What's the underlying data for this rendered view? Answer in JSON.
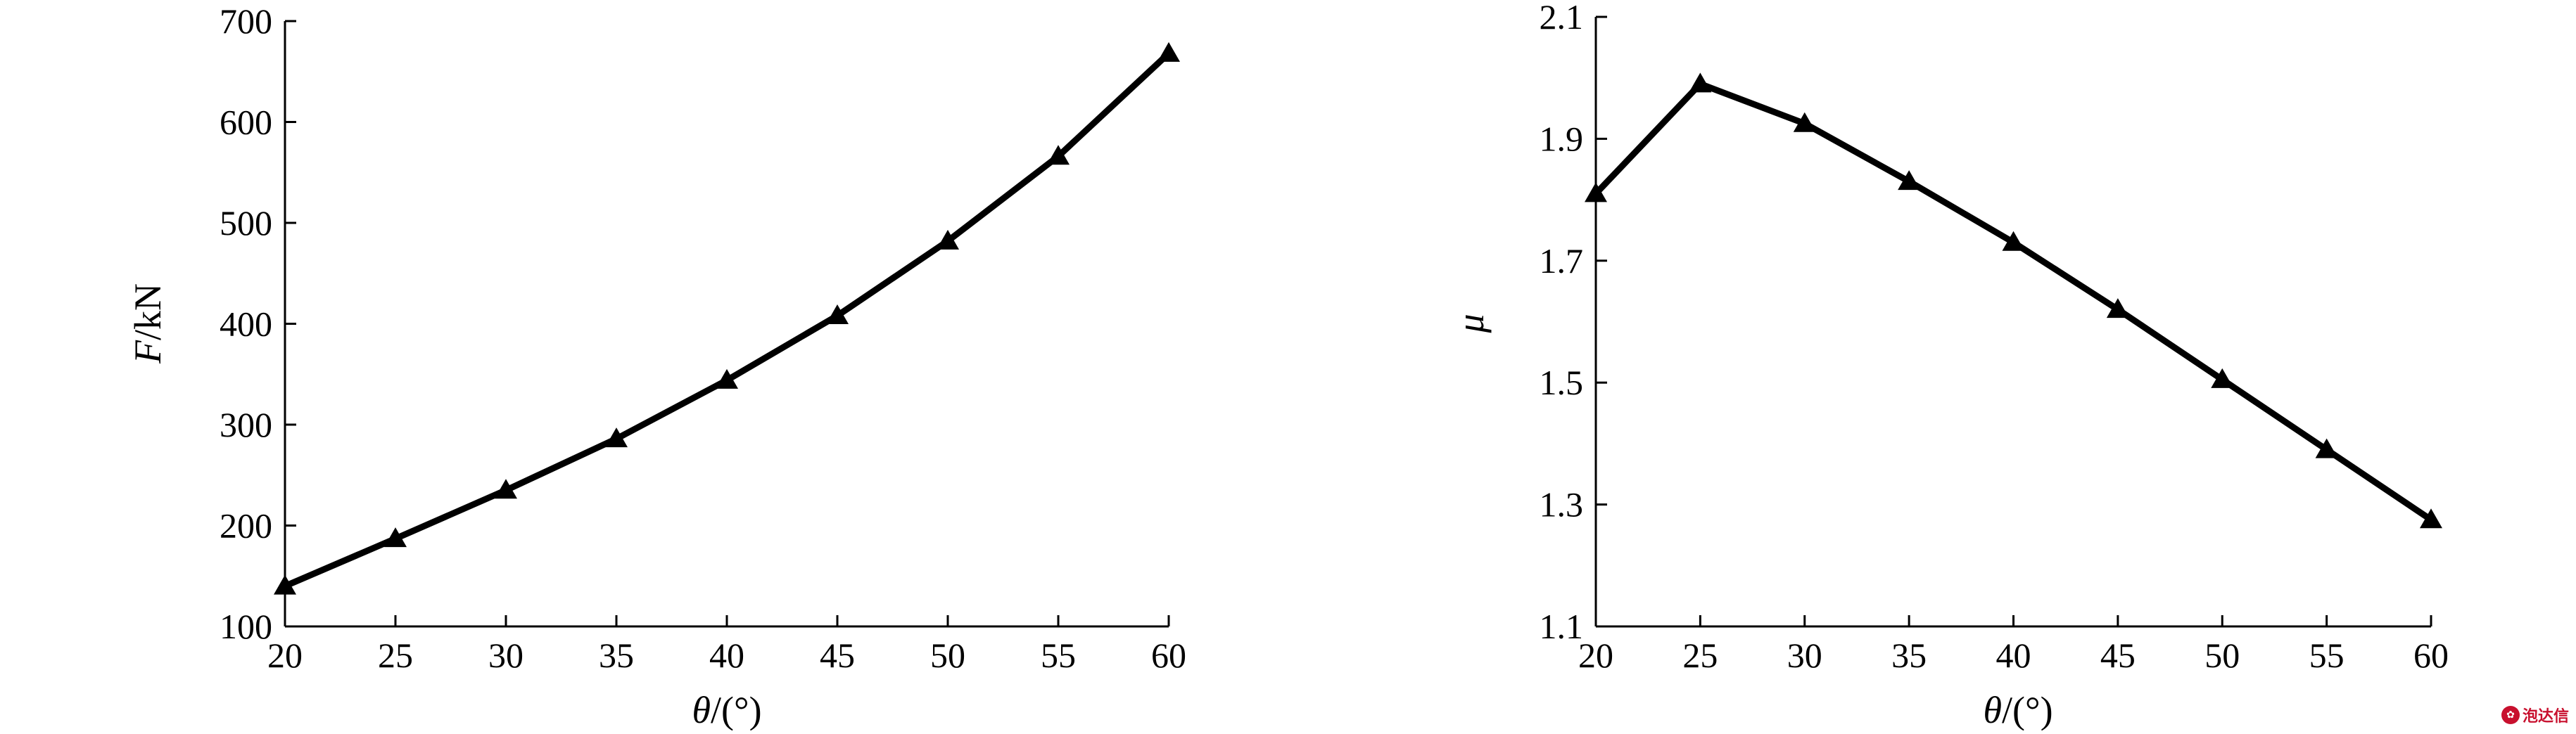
{
  "chart_data": [
    {
      "type": "line",
      "x": [
        20,
        25,
        30,
        35,
        40,
        45,
        50,
        55,
        60
      ],
      "series": [
        {
          "values": [
            140,
            187,
            235,
            286,
            344,
            408,
            482,
            566,
            668
          ],
          "marker": "triangle",
          "color": "#000000"
        }
      ],
      "xlabel": {
        "symbol": "θ",
        "unit": "/(°)"
      },
      "ylabel": {
        "symbol": "F",
        "unit": "/kN"
      },
      "xlim": [
        20,
        60
      ],
      "ylim": [
        100,
        700
      ],
      "xticks": [
        20,
        25,
        30,
        35,
        40,
        45,
        50,
        55,
        60
      ],
      "yticks": [
        100,
        200,
        300,
        400,
        500,
        600,
        700
      ],
      "ytick_decimals": 0,
      "grid": false,
      "legend": "none"
    },
    {
      "type": "line",
      "x": [
        20,
        25,
        30,
        35,
        40,
        45,
        50,
        55,
        60
      ],
      "series": [
        {
          "values": [
            1.81,
            1.99,
            1.925,
            1.83,
            1.73,
            1.62,
            1.505,
            1.39,
            1.275
          ],
          "marker": "triangle",
          "color": "#000000"
        }
      ],
      "xlabel": {
        "symbol": "θ",
        "unit": "/(°)"
      },
      "ylabel": {
        "symbol": "μ",
        "unit": ""
      },
      "xlim": [
        20,
        60
      ],
      "ylim": [
        1.1,
        2.1
      ],
      "xticks": [
        20,
        25,
        30,
        35,
        40,
        45,
        50,
        55,
        60
      ],
      "yticks": [
        1.1,
        1.3,
        1.5,
        1.7,
        1.9,
        2.1
      ],
      "ytick_decimals": 1,
      "grid": false,
      "legend": "none"
    }
  ],
  "watermark": {
    "logo_icon": "cnki-logo-icon",
    "text": "泡达信"
  }
}
